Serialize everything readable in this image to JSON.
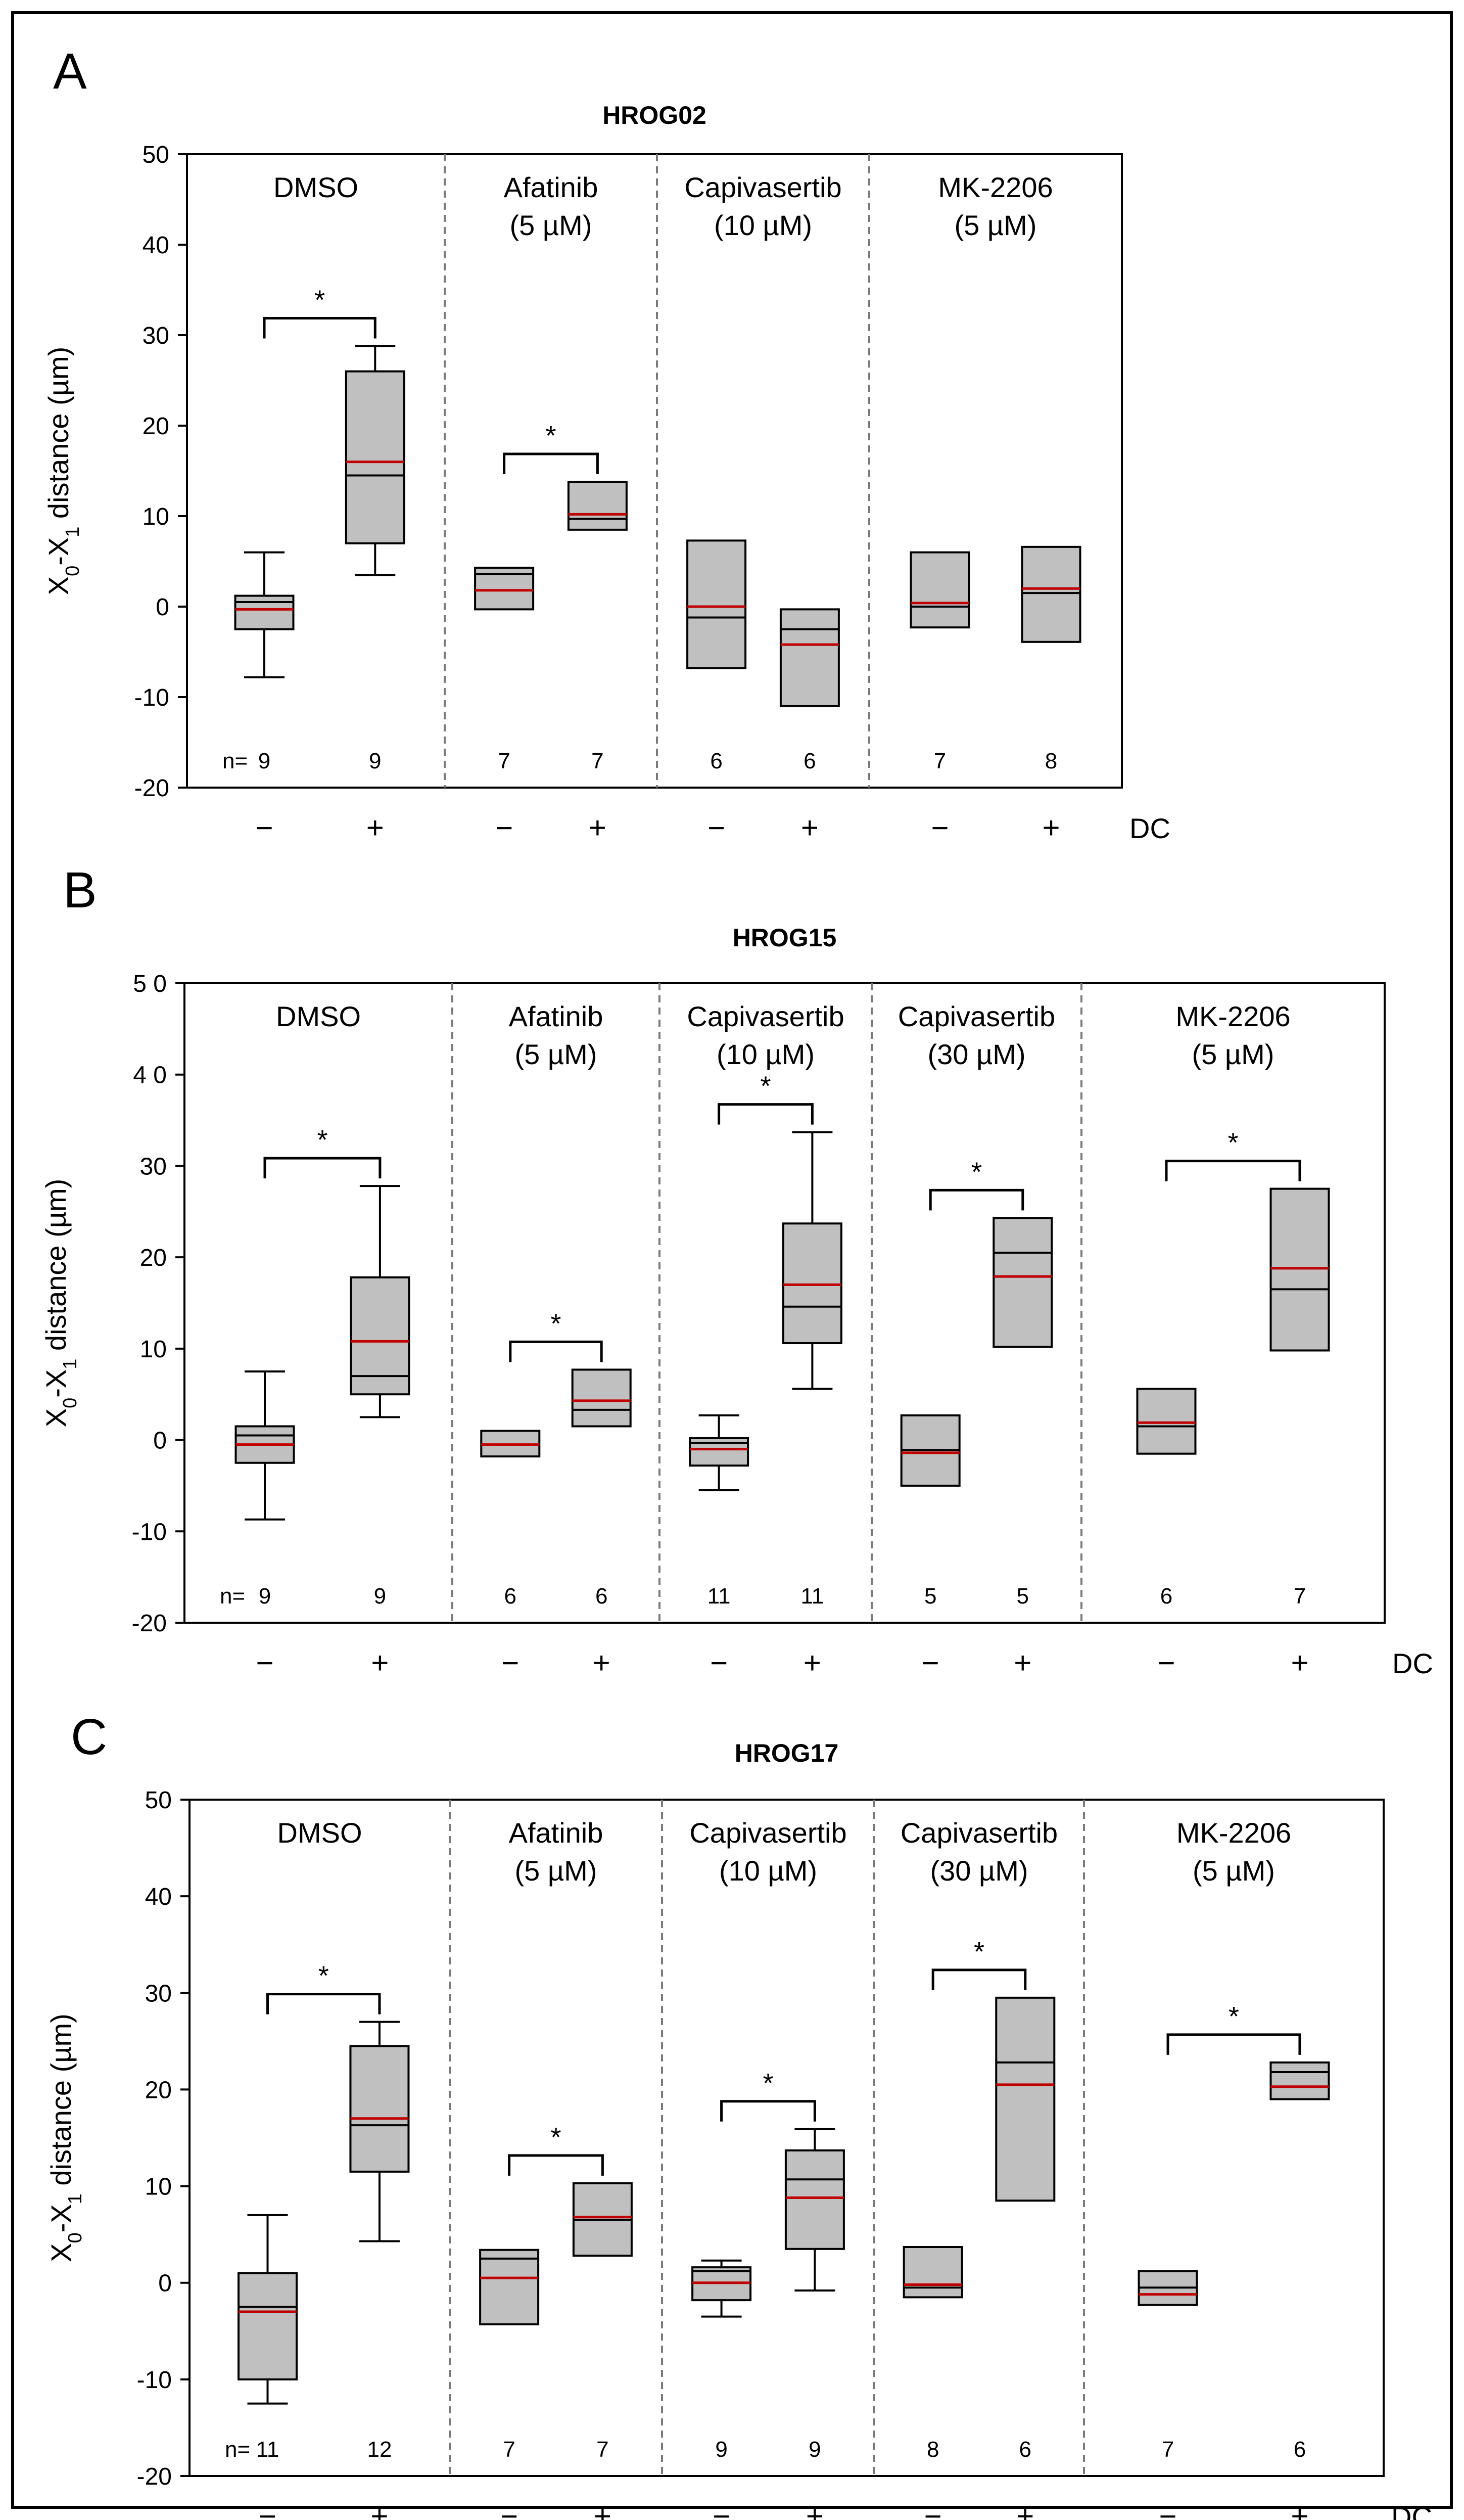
{
  "figure": {
    "y_axis_label": "X0-X1 distance (µm)",
    "y_label_parts": [
      "X",
      "0",
      "-X",
      "1",
      " distance (µm)"
    ],
    "n_label": "n=",
    "dc_label": "DC",
    "minus_sign": "−",
    "plus_sign": "+",
    "significance_mark": "*"
  },
  "chart_data": [
    {
      "type": "box",
      "panel": "A",
      "title": "HROG02",
      "ylim": [
        -20,
        50
      ],
      "yticks": [
        -20,
        -10,
        0,
        10,
        20,
        30,
        40,
        50
      ],
      "ylabel": "X0-X1 distance (µm)",
      "xlabel": "DC",
      "line_colors": {
        "median": "#000000",
        "mean": "#c00000"
      },
      "groups": [
        {
          "label": [
            "DMSO"
          ],
          "significant": true,
          "boxes": [
            {
              "dc": "−",
              "n": 9,
              "whisker_low": -7.8,
              "q1": -2.5,
              "median": 0.5,
              "mean": -0.3,
              "q3": 1.2,
              "whisker_high": 6.0
            },
            {
              "dc": "+",
              "n": 9,
              "whisker_low": 3.5,
              "q1": 7.0,
              "median": 14.5,
              "mean": 16.0,
              "q3": 26.0,
              "whisker_high": 28.8
            }
          ]
        },
        {
          "label": [
            "Afatinib",
            "(5 µM)"
          ],
          "significant": true,
          "boxes": [
            {
              "dc": "−",
              "n": 7,
              "q1": -0.3,
              "median": 3.6,
              "mean": 1.8,
              "q3": 4.3
            },
            {
              "dc": "+",
              "n": 7,
              "q1": 8.5,
              "median": 9.7,
              "mean": 10.2,
              "q3": 13.8
            }
          ]
        },
        {
          "label": [
            "Capivasertib",
            "(10 µM)"
          ],
          "significant": false,
          "boxes": [
            {
              "dc": "−",
              "n": 6,
              "q1": -6.8,
              "median": -1.2,
              "mean": 0.0,
              "q3": 7.3
            },
            {
              "dc": "+",
              "n": 6,
              "q1": -11.0,
              "median": -2.5,
              "mean": -4.2,
              "q3": -0.3
            }
          ]
        },
        {
          "label": [
            "MK-2206",
            "(5 µM)"
          ],
          "significant": false,
          "boxes": [
            {
              "dc": "−",
              "n": 7,
              "q1": -2.3,
              "median": 0.0,
              "mean": 0.4,
              "q3": 6.0
            },
            {
              "dc": "+",
              "n": 8,
              "q1": -3.9,
              "median": 1.5,
              "mean": 2.0,
              "q3": 6.6
            }
          ]
        }
      ]
    },
    {
      "type": "box",
      "panel": "B",
      "title": "HROG15",
      "ylim": [
        -20,
        50
      ],
      "yticks": [
        "-20",
        "-10",
        "0",
        "10",
        "20",
        "30",
        "4 0",
        "5 0"
      ],
      "ylabel": "X0-X1 distance (µm)",
      "xlabel": "DC",
      "line_colors": {
        "median": "#000000",
        "mean": "#c00000"
      },
      "groups": [
        {
          "label": [
            "DMSO"
          ],
          "significant": true,
          "boxes": [
            {
              "dc": "−",
              "n": 9,
              "whisker_low": -8.7,
              "q1": -2.5,
              "median": 0.5,
              "mean": -0.5,
              "q3": 1.5,
              "whisker_high": 7.5
            },
            {
              "dc": "+",
              "n": 9,
              "whisker_low": 2.5,
              "q1": 5.0,
              "median": 7.0,
              "mean": 10.8,
              "q3": 17.8,
              "whisker_high": 27.8
            }
          ]
        },
        {
          "label": [
            "Afatinib",
            "(5 µM)"
          ],
          "significant": true,
          "boxes": [
            {
              "dc": "−",
              "n": 6,
              "q1": -1.8,
              "median": 1.0,
              "mean": -0.5,
              "q3": 1.0
            },
            {
              "dc": "+",
              "n": 6,
              "q1": 1.5,
              "median": 3.3,
              "mean": 4.3,
              "q3": 7.7
            }
          ]
        },
        {
          "label": [
            "Capivasertib",
            "(10 µM)"
          ],
          "significant": true,
          "boxes": [
            {
              "dc": "−",
              "n": 11,
              "whisker_low": -5.5,
              "q1": -2.8,
              "median": -0.3,
              "mean": -1.0,
              "q3": 0.2,
              "whisker_high": 2.7
            },
            {
              "dc": "+",
              "n": 11,
              "whisker_low": 5.6,
              "q1": 10.6,
              "median": 14.6,
              "mean": 17.0,
              "q3": 23.7,
              "whisker_high": 33.7
            }
          ]
        },
        {
          "label": [
            "Capivasertib",
            "(30 µM)"
          ],
          "significant": true,
          "boxes": [
            {
              "dc": "−",
              "n": 5,
              "q1": -5.0,
              "median": -1.1,
              "mean": -1.4,
              "q3": 2.7
            },
            {
              "dc": "+",
              "n": 5,
              "q1": 10.2,
              "median": 20.5,
              "mean": 17.9,
              "q3": 24.3
            }
          ]
        },
        {
          "label": [
            "MK-2206",
            "(5 µM)"
          ],
          "significant": true,
          "boxes": [
            {
              "dc": "−",
              "n": 6,
              "q1": -1.5,
              "median": 1.5,
              "mean": 1.9,
              "q3": 5.6
            },
            {
              "dc": "+",
              "n": 7,
              "q1": 9.8,
              "median": 16.5,
              "mean": 18.8,
              "q3": 27.5
            }
          ]
        }
      ]
    },
    {
      "type": "box",
      "panel": "C",
      "title": "HROG17",
      "ylim": [
        -20,
        50
      ],
      "yticks": [
        "-20",
        "-10",
        "0",
        "10",
        "20",
        "30",
        "40",
        "50"
      ],
      "ylabel": "X0-X1 distance (µm)",
      "xlabel": "DC",
      "line_colors": {
        "median": "#000000",
        "mean": "#c00000"
      },
      "groups": [
        {
          "label": [
            "DMSO"
          ],
          "significant": true,
          "boxes": [
            {
              "dc": "−",
              "n": 11,
              "whisker_low": -12.5,
              "q1": -10.0,
              "median": -2.5,
              "mean": -3.0,
              "q3": 1.0,
              "whisker_high": 7.0
            },
            {
              "dc": "+",
              "n": 12,
              "whisker_low": 4.3,
              "q1": 11.5,
              "median": 16.3,
              "mean": 17.0,
              "q3": 24.5,
              "whisker_high": 27.0
            }
          ]
        },
        {
          "label": [
            "Afatinib",
            "(5 µM)"
          ],
          "significant": true,
          "boxes": [
            {
              "dc": "−",
              "n": 7,
              "q1": -4.3,
              "median": 2.5,
              "mean": 0.5,
              "q3": 3.4
            },
            {
              "dc": "+",
              "n": 7,
              "q1": 2.8,
              "median": 6.5,
              "mean": 6.8,
              "q3": 10.3
            }
          ]
        },
        {
          "label": [
            "Capivasertib",
            "(10 µM)"
          ],
          "significant": true,
          "boxes": [
            {
              "dc": "−",
              "n": 9,
              "whisker_low": -3.5,
              "q1": -1.8,
              "median": 1.2,
              "mean": 0.0,
              "q3": 1.6,
              "whisker_high": 2.3
            },
            {
              "dc": "+",
              "n": 9,
              "whisker_low": -0.8,
              "q1": 3.5,
              "median": 10.7,
              "mean": 8.8,
              "q3": 13.7,
              "whisker_high": 15.9
            }
          ]
        },
        {
          "label": [
            "Capivasertib",
            "(30 µM)"
          ],
          "significant": true,
          "boxes": [
            {
              "dc": "−",
              "n": 8,
              "q1": -1.5,
              "median": -0.5,
              "mean": -0.2,
              "q3": 3.7
            },
            {
              "dc": "+",
              "n": 6,
              "q1": 8.5,
              "median": 22.8,
              "mean": 20.5,
              "q3": 29.5
            }
          ]
        },
        {
          "label": [
            "MK-2206",
            "(5 µM)"
          ],
          "significant": true,
          "boxes": [
            {
              "dc": "−",
              "n": 7,
              "q1": -2.3,
              "median": -0.5,
              "mean": -1.2,
              "q3": 1.2
            },
            {
              "dc": "+",
              "n": 6,
              "q1": 19.0,
              "median": 21.8,
              "mean": 20.3,
              "q3": 22.8
            }
          ]
        }
      ]
    }
  ]
}
